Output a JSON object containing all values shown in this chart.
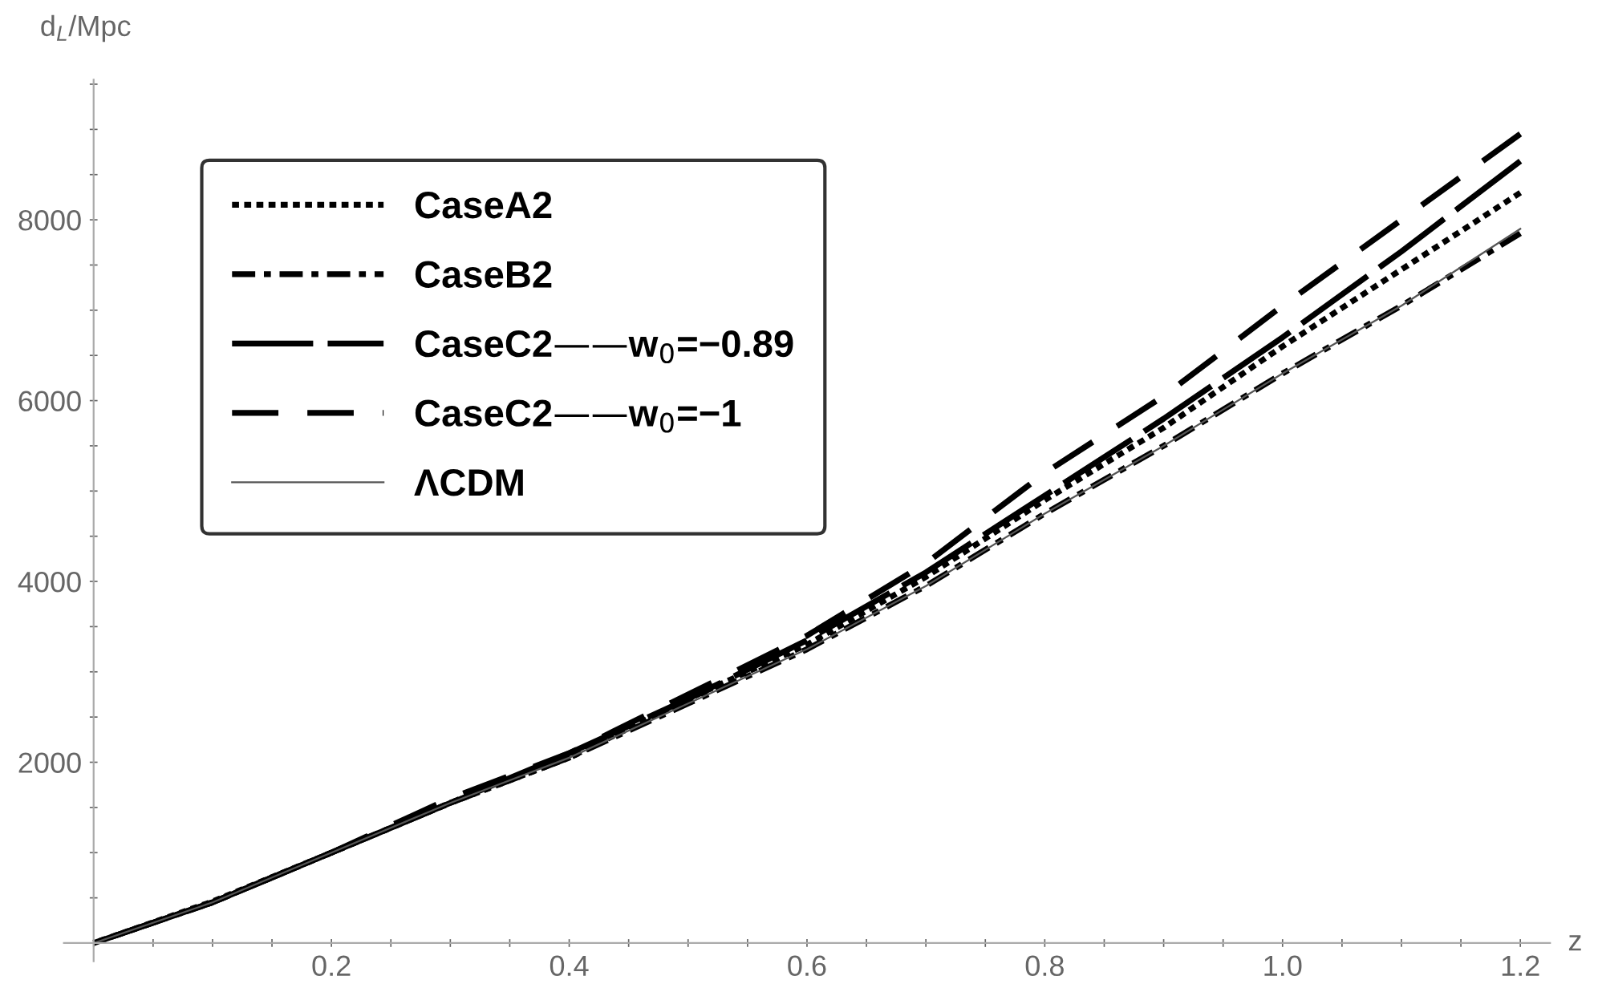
{
  "chart_data": {
    "type": "line",
    "xlabel": "z",
    "ylabel": "d$_{L}$/Mpc",
    "x": [
      0,
      0.1,
      0.2,
      0.3,
      0.4,
      0.5,
      0.6,
      0.7,
      0.8,
      0.9,
      1.0,
      1.1,
      1.2
    ],
    "series": [
      {
        "name": "CaseA2",
        "color": "#000000",
        "line_style": "dotted",
        "values": [
          0,
          460,
          1000,
          1550,
          2050,
          2700,
          3300,
          4050,
          4900,
          5700,
          6600,
          7450,
          8300
        ]
      },
      {
        "name": "CaseB2",
        "color": "#000000",
        "line_style": "dashdot",
        "values": [
          0,
          450,
          1000,
          1550,
          2050,
          2650,
          3250,
          3950,
          4750,
          5500,
          6300,
          7050,
          7850
        ]
      },
      {
        "name": "CaseC2——w$_{0}$=−0.89",
        "color": "#000000",
        "line_style": "longdash",
        "values": [
          0,
          450,
          1000,
          1550,
          2100,
          2700,
          3350,
          4100,
          4950,
          5800,
          6700,
          7650,
          8650
        ]
      },
      {
        "name": "CaseC2——w$_{0}$=−1",
        "color": "#000000",
        "line_style": "dashed",
        "values": [
          0,
          450,
          1000,
          1600,
          2100,
          2750,
          3400,
          4200,
          5200,
          6050,
          7050,
          8000,
          8950
        ]
      },
      {
        "name": "ΛCDM",
        "color": "#555555",
        "line_style": "solid",
        "values": [
          0,
          450,
          1000,
          1550,
          2050,
          2650,
          3250,
          3950,
          4750,
          5500,
          6300,
          7050,
          7900
        ]
      }
    ],
    "xlim": [
      -0.025,
      1.225
    ],
    "ylim": [
      -200,
      9550
    ],
    "xticks": [
      {
        "value": 0,
        "label": null
      },
      {
        "value": 0.05,
        "label": null
      },
      {
        "value": 0.1,
        "label": null
      },
      {
        "value": 0.15,
        "label": null
      },
      0.2,
      {
        "value": 0.25,
        "label": null
      },
      {
        "value": 0.3,
        "label": null
      },
      {
        "value": 0.35,
        "label": null
      },
      0.4,
      {
        "value": 0.45,
        "label": null
      },
      {
        "value": 0.5,
        "label": null
      },
      {
        "value": 0.55,
        "label": null
      },
      0.6,
      {
        "value": 0.65,
        "label": null
      },
      {
        "value": 0.7,
        "label": null
      },
      {
        "value": 0.75,
        "label": null
      },
      0.8,
      {
        "value": 0.85,
        "label": null
      },
      {
        "value": 0.9,
        "label": null
      },
      {
        "value": 0.95,
        "label": null
      },
      {
        "value": 1.0,
        "label": "1.0"
      },
      {
        "value": 1.05,
        "label": null
      },
      {
        "value": 1.1,
        "label": null
      },
      {
        "value": 1.15,
        "label": null
      },
      1.2
    ],
    "yticks": [
      {
        "value": 500,
        "label": null
      },
      {
        "value": 1000,
        "label": null
      },
      {
        "value": 1500,
        "label": null
      },
      2000,
      {
        "value": 2500,
        "label": null
      },
      {
        "value": 3000,
        "label": null
      },
      {
        "value": 3500,
        "label": null
      },
      4000,
      {
        "value": 4500,
        "label": null
      },
      {
        "value": 5000,
        "label": null
      },
      {
        "value": 5500,
        "label": null
      },
      6000,
      {
        "value": 6500,
        "label": null
      },
      {
        "value": 7000,
        "label": null
      },
      {
        "value": 7500,
        "label": null
      },
      8000,
      {
        "value": 8500,
        "label": null
      },
      {
        "value": 9000,
        "label": null
      },
      {
        "value": 9500,
        "label": null
      }
    ],
    "legend": "top left",
    "grid": false
  }
}
